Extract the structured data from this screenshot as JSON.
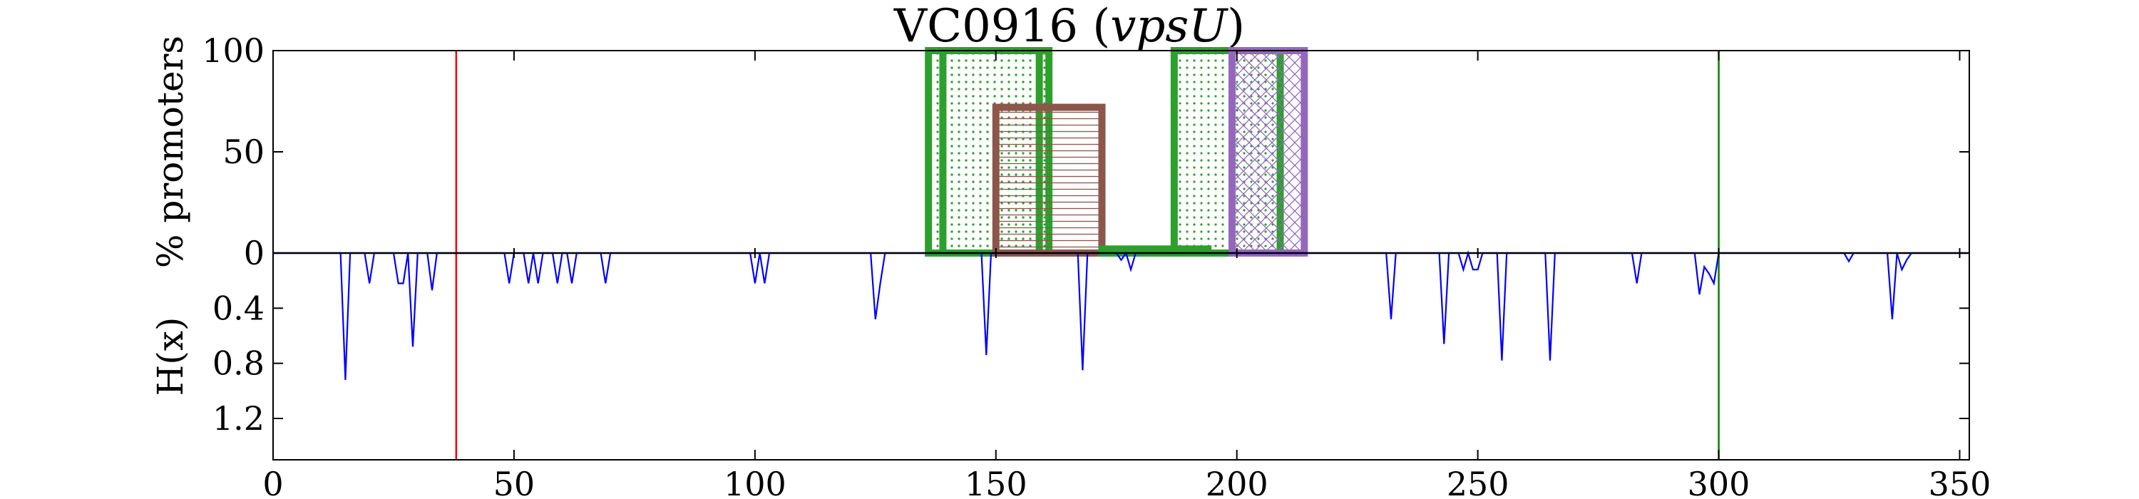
{
  "chart_data": {
    "type": "composite",
    "title": {
      "prefix": "VC0916 (",
      "italic": "vpsU",
      "suffix": ")"
    },
    "x_axis": {
      "range": [
        0,
        352
      ],
      "ticks": [
        0,
        50,
        100,
        150,
        200,
        250,
        300,
        350
      ],
      "tick_labels": [
        "0",
        "50",
        "100",
        "150",
        "200",
        "250",
        "300",
        "350"
      ]
    },
    "top_panel": {
      "ylabel": "% promoters",
      "ylim": [
        0,
        100
      ],
      "ticks": [
        0,
        50,
        100
      ],
      "tick_labels": [
        "0",
        "50",
        "100"
      ],
      "vertical_lines": [
        {
          "x": 38,
          "color": "#ff0000"
        },
        {
          "x": 300,
          "color": "#008000"
        }
      ],
      "boxes": [
        {
          "x0": 136,
          "x1": 159,
          "value": 100,
          "color": "#2ca02c",
          "hatch": "dots"
        },
        {
          "x0": 139,
          "x1": 161,
          "value": 100,
          "color": "#2ca02c",
          "hatch": "dots"
        },
        {
          "x0": 150,
          "x1": 172,
          "value": 72,
          "color": "#8c564b",
          "hatch": "horizontal"
        },
        {
          "x0": 172,
          "x1": 194,
          "value": 2,
          "color": "#2ca02c",
          "hatch": "none"
        },
        {
          "x0": 187,
          "x1": 209,
          "value": 100,
          "color": "#2ca02c",
          "hatch": "dots"
        },
        {
          "x0": 199,
          "x1": 214,
          "value": 100,
          "color": "#9467bd",
          "hatch": "crosshatch"
        }
      ]
    },
    "bottom_panel": {
      "ylabel": "H(x)",
      "ylim": [
        0,
        1.5
      ],
      "inverted": true,
      "ticks": [
        0.4,
        0.8,
        1.2
      ],
      "tick_labels": [
        "0.4",
        "0.8",
        "1.2"
      ],
      "line_color": "#0000ff",
      "series": [
        {
          "x": 0,
          "y": 0
        },
        {
          "x": 14,
          "y": 0
        },
        {
          "x": 15,
          "y": 0.92
        },
        {
          "x": 16,
          "y": 0
        },
        {
          "x": 19,
          "y": 0
        },
        {
          "x": 20,
          "y": 0.22
        },
        {
          "x": 21,
          "y": 0
        },
        {
          "x": 25,
          "y": 0
        },
        {
          "x": 26,
          "y": 0.22
        },
        {
          "x": 27,
          "y": 0.22
        },
        {
          "x": 28,
          "y": 0
        },
        {
          "x": 29,
          "y": 0.68
        },
        {
          "x": 30,
          "y": 0
        },
        {
          "x": 32,
          "y": 0
        },
        {
          "x": 33,
          "y": 0.27
        },
        {
          "x": 34,
          "y": 0
        },
        {
          "x": 48,
          "y": 0
        },
        {
          "x": 49,
          "y": 0.22
        },
        {
          "x": 50,
          "y": 0
        },
        {
          "x": 52,
          "y": 0
        },
        {
          "x": 53,
          "y": 0.22
        },
        {
          "x": 54,
          "y": 0
        },
        {
          "x": 55,
          "y": 0.22
        },
        {
          "x": 56,
          "y": 0
        },
        {
          "x": 58,
          "y": 0
        },
        {
          "x": 59,
          "y": 0.22
        },
        {
          "x": 60,
          "y": 0
        },
        {
          "x": 61,
          "y": 0
        },
        {
          "x": 62,
          "y": 0.22
        },
        {
          "x": 63,
          "y": 0
        },
        {
          "x": 68,
          "y": 0
        },
        {
          "x": 69,
          "y": 0.22
        },
        {
          "x": 70,
          "y": 0
        },
        {
          "x": 99,
          "y": 0
        },
        {
          "x": 100,
          "y": 0.22
        },
        {
          "x": 101,
          "y": 0
        },
        {
          "x": 102,
          "y": 0.22
        },
        {
          "x": 103,
          "y": 0
        },
        {
          "x": 124,
          "y": 0
        },
        {
          "x": 125,
          "y": 0.48
        },
        {
          "x": 126,
          "y": 0.22
        },
        {
          "x": 127,
          "y": 0
        },
        {
          "x": 147,
          "y": 0
        },
        {
          "x": 148,
          "y": 0.74
        },
        {
          "x": 149,
          "y": 0
        },
        {
          "x": 167,
          "y": 0
        },
        {
          "x": 168,
          "y": 0.85
        },
        {
          "x": 169,
          "y": 0
        },
        {
          "x": 175,
          "y": 0
        },
        {
          "x": 176,
          "y": 0.05
        },
        {
          "x": 177,
          "y": 0
        },
        {
          "x": 178,
          "y": 0.12
        },
        {
          "x": 179,
          "y": 0
        },
        {
          "x": 231,
          "y": 0
        },
        {
          "x": 232,
          "y": 0.48
        },
        {
          "x": 233,
          "y": 0
        },
        {
          "x": 242,
          "y": 0
        },
        {
          "x": 243,
          "y": 0.66
        },
        {
          "x": 244,
          "y": 0
        },
        {
          "x": 246,
          "y": 0
        },
        {
          "x": 247,
          "y": 0.12
        },
        {
          "x": 248,
          "y": 0
        },
        {
          "x": 249,
          "y": 0.12
        },
        {
          "x": 250,
          "y": 0.12
        },
        {
          "x": 251,
          "y": 0
        },
        {
          "x": 254,
          "y": 0
        },
        {
          "x": 255,
          "y": 0.78
        },
        {
          "x": 256,
          "y": 0
        },
        {
          "x": 264,
          "y": 0
        },
        {
          "x": 265,
          "y": 0.78
        },
        {
          "x": 266,
          "y": 0
        },
        {
          "x": 282,
          "y": 0
        },
        {
          "x": 283,
          "y": 0.22
        },
        {
          "x": 284,
          "y": 0
        },
        {
          "x": 295,
          "y": 0
        },
        {
          "x": 296,
          "y": 0.3
        },
        {
          "x": 297,
          "y": 0.1
        },
        {
          "x": 298,
          "y": 0.15
        },
        {
          "x": 299,
          "y": 0.22
        },
        {
          "x": 300,
          "y": 0
        },
        {
          "x": 326,
          "y": 0
        },
        {
          "x": 327,
          "y": 0.06
        },
        {
          "x": 328,
          "y": 0
        },
        {
          "x": 335,
          "y": 0
        },
        {
          "x": 336,
          "y": 0.48
        },
        {
          "x": 337,
          "y": 0
        },
        {
          "x": 338,
          "y": 0.12
        },
        {
          "x": 339,
          "y": 0.05
        },
        {
          "x": 340,
          "y": 0
        },
        {
          "x": 352,
          "y": 0
        }
      ]
    }
  }
}
